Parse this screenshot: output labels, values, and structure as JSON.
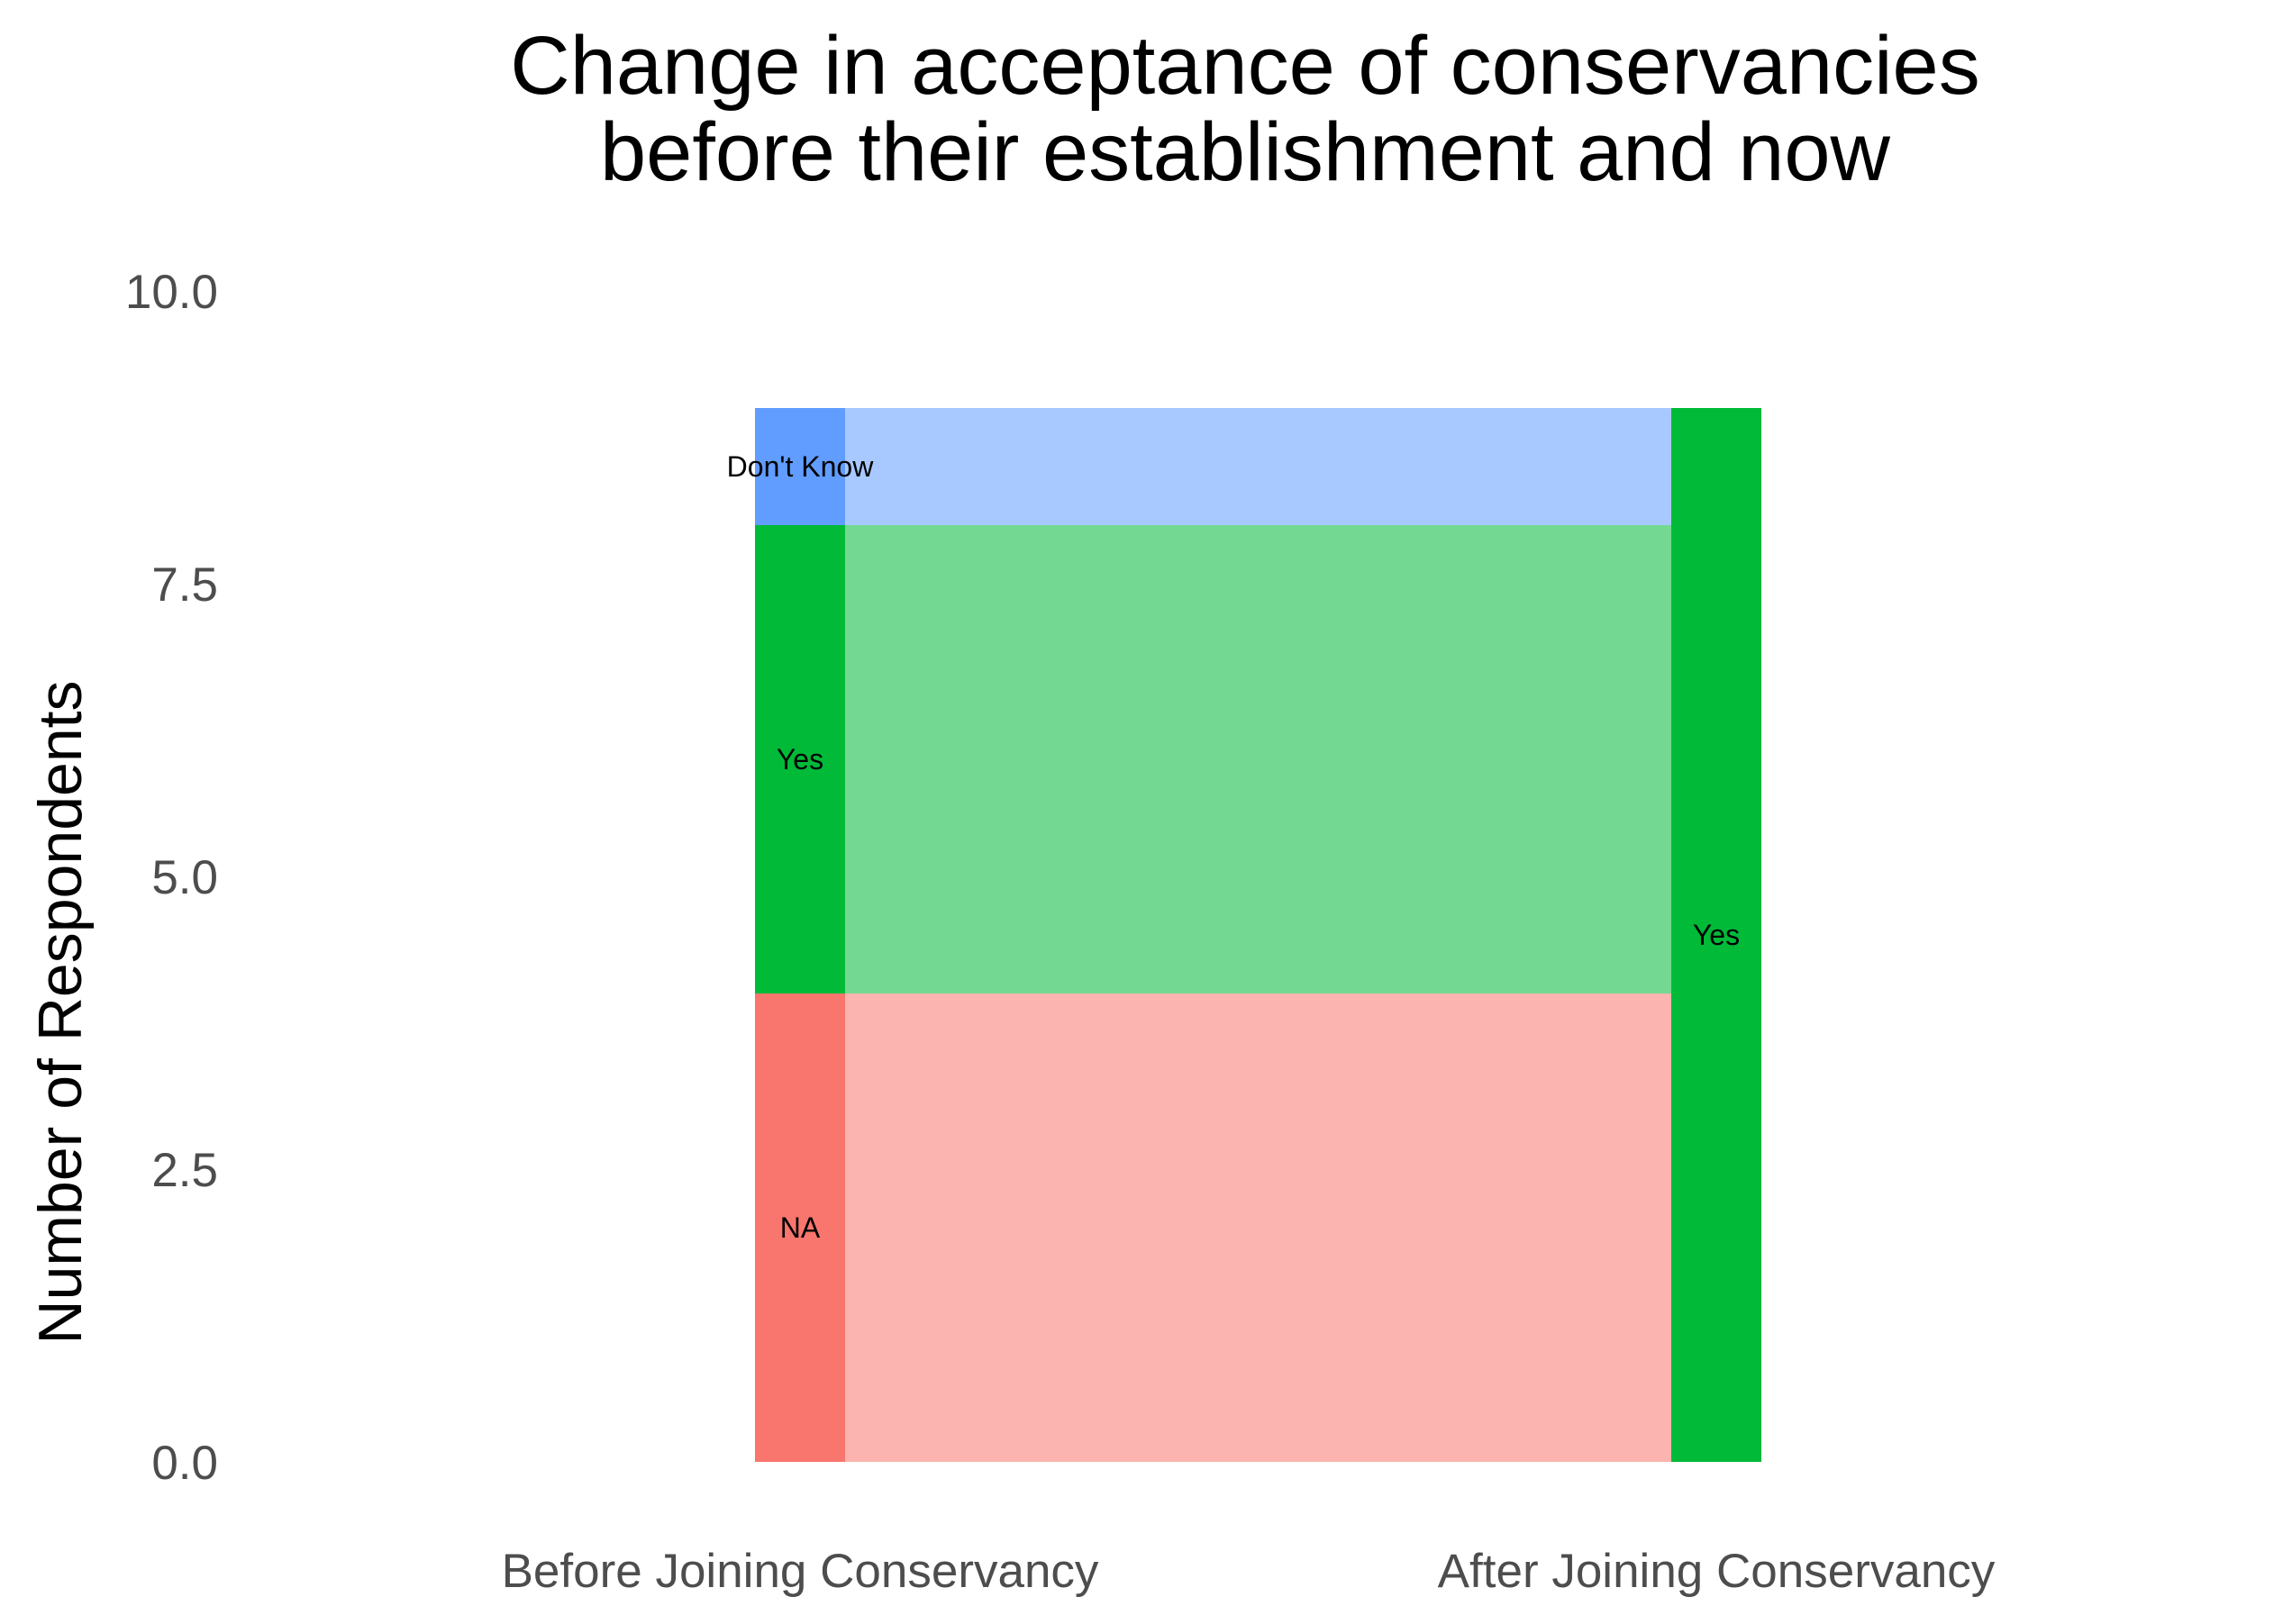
{
  "chart_data": {
    "type": "alluvial",
    "title_lines": [
      "Change in acceptance of conservancies",
      "before their establishment and now"
    ],
    "xlabel": "",
    "ylabel": "Number of Respondents",
    "ylim": [
      0,
      10
    ],
    "yticks": [
      "0.0",
      "2.5",
      "5.0",
      "7.5",
      "10.0"
    ],
    "grid": false,
    "legend": "none",
    "axes": [
      "Before Joining Conservancy",
      "After Joining Conservancy"
    ],
    "strata": [
      {
        "axis": 0,
        "label": "NA",
        "value": 4,
        "color": "#F8766D"
      },
      {
        "axis": 0,
        "label": "Yes",
        "value": 4,
        "color": "#00BA38"
      },
      {
        "axis": 0,
        "label": "Don't Know",
        "value": 1,
        "color": "#619CFF"
      },
      {
        "axis": 1,
        "label": "Yes",
        "value": 9,
        "color": "#00BA38"
      }
    ],
    "flows": [
      {
        "from": "NA",
        "to": "Yes",
        "value": 4,
        "color": "#F8766D"
      },
      {
        "from": "Yes",
        "to": "Yes",
        "value": 4,
        "color": "#00BA38"
      },
      {
        "from": "Don't Know",
        "to": "Yes",
        "value": 1,
        "color": "#619CFF"
      }
    ]
  }
}
